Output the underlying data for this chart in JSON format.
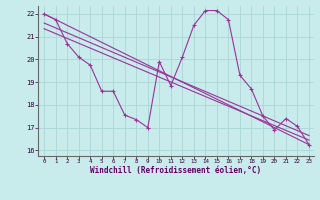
{
  "xlabel": "Windchill (Refroidissement éolien,°C)",
  "bg_color": "#c8ecec",
  "grid_color": "#b0d8d8",
  "line_color": "#993399",
  "xlim": [
    -0.5,
    23.4
  ],
  "ylim": [
    15.75,
    22.35
  ],
  "yticks": [
    16,
    17,
    18,
    19,
    20,
    21,
    22
  ],
  "xticks": [
    0,
    1,
    2,
    3,
    4,
    5,
    6,
    7,
    8,
    9,
    10,
    11,
    12,
    13,
    14,
    15,
    16,
    17,
    18,
    19,
    20,
    21,
    22,
    23
  ],
  "series1_x": [
    0,
    1,
    2,
    3,
    4,
    5,
    6,
    7,
    8,
    9,
    10,
    11,
    12,
    13,
    14,
    15,
    16,
    17,
    18,
    19,
    20,
    21,
    22,
    23
  ],
  "series1_y": [
    22.0,
    21.75,
    20.7,
    20.1,
    19.75,
    18.6,
    18.6,
    17.55,
    17.35,
    17.0,
    19.9,
    18.85,
    20.1,
    21.5,
    22.15,
    22.15,
    21.75,
    19.3,
    18.7,
    17.5,
    16.9,
    17.4,
    17.05,
    16.25
  ],
  "series2_x": [
    0,
    23
  ],
  "series2_y": [
    22.0,
    16.25
  ],
  "series3_x": [
    0,
    23
  ],
  "series3_y": [
    21.6,
    16.65
  ],
  "series4_x": [
    0,
    23
  ],
  "series4_y": [
    21.35,
    16.45
  ]
}
